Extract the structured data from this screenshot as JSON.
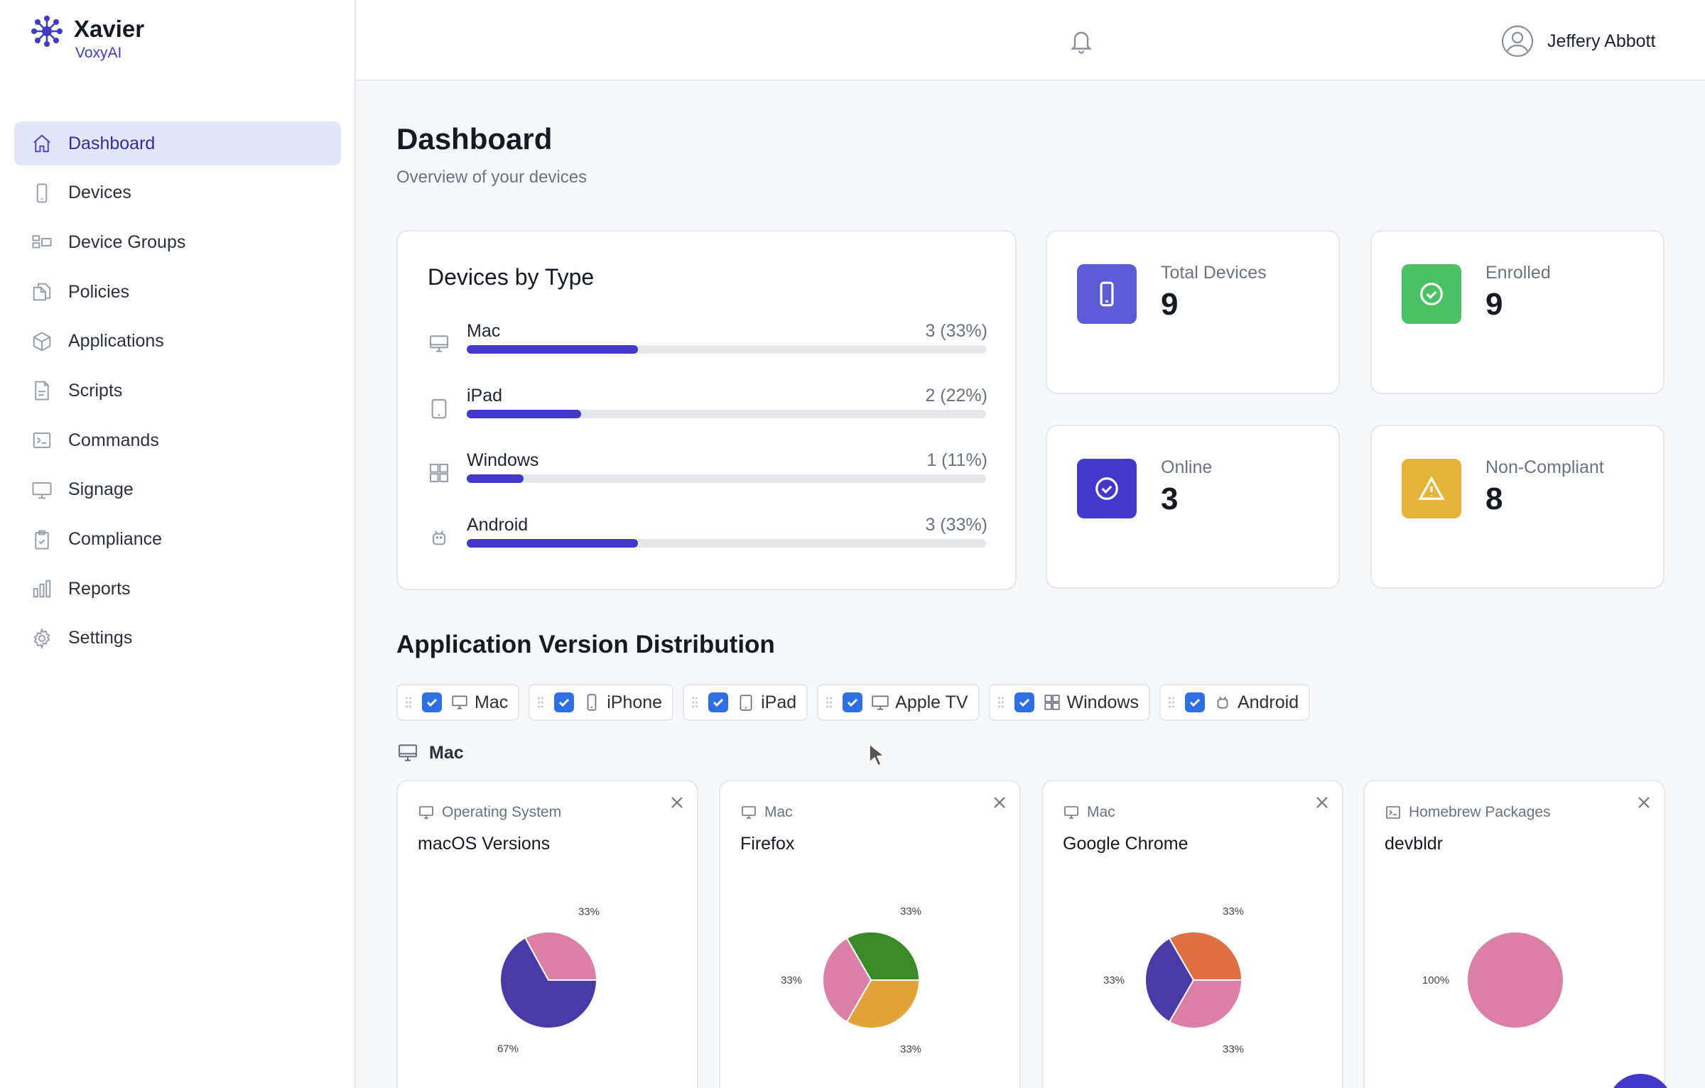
{
  "brand": {
    "name": "Xavier",
    "sub": "VoxyAI"
  },
  "user": {
    "name": "Jeffery Abbott"
  },
  "nav": [
    {
      "label": "Dashboard",
      "icon": "home-icon",
      "active": true
    },
    {
      "label": "Devices",
      "icon": "phone-icon"
    },
    {
      "label": "Device Groups",
      "icon": "groups-icon"
    },
    {
      "label": "Policies",
      "icon": "documents-icon"
    },
    {
      "label": "Applications",
      "icon": "cube-icon"
    },
    {
      "label": "Scripts",
      "icon": "script-icon"
    },
    {
      "label": "Commands",
      "icon": "terminal-icon"
    },
    {
      "label": "Signage",
      "icon": "monitor-icon"
    },
    {
      "label": "Compliance",
      "icon": "clipboard-icon"
    },
    {
      "label": "Reports",
      "icon": "bar-chart-icon"
    },
    {
      "label": "Settings",
      "icon": "gear-icon"
    }
  ],
  "page": {
    "title": "Dashboard",
    "subtitle": "Overview of your devices"
  },
  "types": {
    "title": "Devices by Type",
    "rows": [
      {
        "name": "Mac",
        "value": "3 (33%)",
        "pct": 33,
        "icon": "desktop-icon"
      },
      {
        "name": "iPad",
        "value": "2 (22%)",
        "pct": 22,
        "icon": "tablet-icon"
      },
      {
        "name": "Windows",
        "value": "1 (11%)",
        "pct": 11,
        "icon": "windows-icon"
      },
      {
        "name": "Android",
        "value": "3 (33%)",
        "pct": 33,
        "icon": "android-icon"
      }
    ]
  },
  "stats": [
    {
      "label": "Total Devices",
      "value": "9",
      "color": "#5b5bd6",
      "icon": "phone-icon"
    },
    {
      "label": "Enrolled",
      "value": "9",
      "color": "#4cc064",
      "icon": "check-circle-icon"
    },
    {
      "label": "Online",
      "value": "3",
      "color": "#4338ca",
      "icon": "check-circle-icon"
    },
    {
      "label": "Non-Compliant",
      "value": "8",
      "color": "#e3b33a",
      "icon": "warning-icon"
    }
  ],
  "section": {
    "title": "Application Version Distribution"
  },
  "filters": [
    {
      "label": "Mac",
      "icon": "desktop-icon",
      "checked": true
    },
    {
      "label": "iPhone",
      "icon": "phone-icon",
      "checked": true
    },
    {
      "label": "iPad",
      "icon": "tablet-icon",
      "checked": true
    },
    {
      "label": "Apple TV",
      "icon": "tv-icon",
      "checked": true
    },
    {
      "label": "Windows",
      "icon": "windows-icon",
      "checked": true
    },
    {
      "label": "Android",
      "icon": "android-icon",
      "checked": true
    }
  ],
  "group": {
    "label": "Mac"
  },
  "pies": [
    {
      "category": "Operating System",
      "title": "macOS Versions",
      "cat_icon": "desktop-icon"
    },
    {
      "category": "Mac",
      "title": "Firefox",
      "cat_icon": "desktop-icon"
    },
    {
      "category": "Mac",
      "title": "Google Chrome",
      "cat_icon": "desktop-icon"
    },
    {
      "category": "Homebrew Packages",
      "title": "devbldr",
      "cat_icon": "terminal-icon"
    }
  ],
  "chart_data": [
    {
      "type": "pie",
      "title": "macOS Versions",
      "values": [
        67,
        33
      ],
      "labels": [
        "67%",
        "33%"
      ],
      "colors": [
        "#4a3aa8",
        "#dc7fa6"
      ]
    },
    {
      "type": "pie",
      "title": "Firefox",
      "values": [
        33,
        33,
        33
      ],
      "labels": [
        "33%",
        "33%",
        "33%"
      ],
      "colors": [
        "#e2a43a",
        "#dc7fa6",
        "#3a8a27"
      ]
    },
    {
      "type": "pie",
      "title": "Google Chrome",
      "values": [
        33,
        33,
        33
      ],
      "labels": [
        "33%",
        "33%",
        "33%"
      ],
      "colors": [
        "#dc7fa6",
        "#4a3aa8",
        "#df7043"
      ]
    },
    {
      "type": "pie",
      "title": "devbldr",
      "values": [
        100
      ],
      "labels": [
        "100%"
      ],
      "colors": [
        "#dc7fa6"
      ]
    }
  ]
}
